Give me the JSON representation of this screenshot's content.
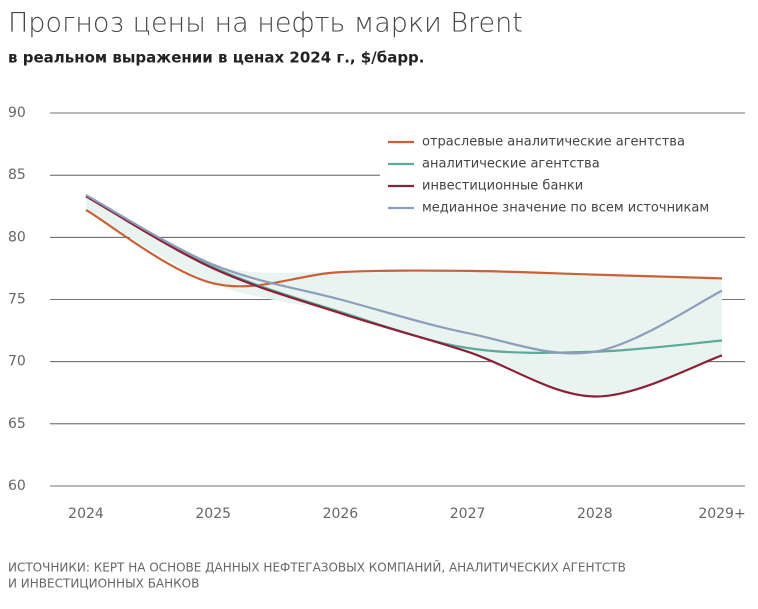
{
  "chart_data": {
    "type": "line",
    "title": "Прогноз цены на нефть марки Brent",
    "subtitle": "в реальном выражении в ценах 2024 г., $/барр.",
    "categories": [
      "2024",
      "2025",
      "2026",
      "2027",
      "2028",
      "2029+"
    ],
    "series": [
      {
        "name": "отраслевые аналитические агентства",
        "color": "#c8613a",
        "values": [
          82.2,
          76.3,
          77.2,
          77.3,
          77.0,
          76.7
        ]
      },
      {
        "name": "аналитические агентства",
        "color": "#5fa99a",
        "values": [
          83.3,
          77.6,
          74.0,
          71.1,
          70.8,
          71.7
        ]
      },
      {
        "name": "инвестиционные банки",
        "color": "#8b2038",
        "values": [
          83.3,
          77.5,
          73.9,
          70.8,
          67.2,
          70.5
        ]
      },
      {
        "name": "медианное значение по всем источникам",
        "color": "#8e9db8",
        "values": [
          83.4,
          77.8,
          75.0,
          72.3,
          70.8,
          75.7
        ]
      }
    ],
    "ylim": [
      60,
      90
    ],
    "yticks": [
      60,
      65,
      70,
      75,
      80,
      85,
      90
    ],
    "grid": true,
    "legend": "top-right",
    "range_fill": "#e9f4f0",
    "source": [
      "ИСТОЧНИКИ: КЕРТ НА ОСНОВЕ ДАННЫХ НЕФТЕГАЗОВЫХ КОМПАНИЙ, АНАЛИТИЧЕСКИХ АГЕНТСТВ",
      "И ИНВЕСТИЦИОННЫХ БАНКОВ"
    ]
  }
}
